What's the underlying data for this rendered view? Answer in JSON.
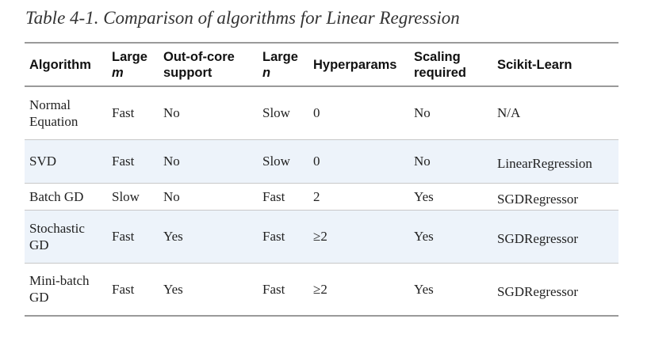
{
  "caption": "Table 4-1. Comparison of algorithms for Linear Regression",
  "headers": {
    "algorithm": "Algorithm",
    "large_m": {
      "line1": "Large",
      "line2": "m"
    },
    "out_of_core": {
      "line1": "Out-of-core",
      "line2": "support"
    },
    "large_n": {
      "line1": "Large",
      "line2": "n"
    },
    "hyperparams": "Hyperparams",
    "scaling": {
      "line1": "Scaling",
      "line2": "required"
    },
    "sklearn": "Scikit-Learn"
  },
  "rows": [
    {
      "algorithm": {
        "line1": "Normal",
        "line2": "Equation"
      },
      "large_m": "Fast",
      "out_of_core": "No",
      "large_n": "Slow",
      "hyperparams": "0",
      "scaling": "No",
      "sklearn": "N/A"
    },
    {
      "algorithm": {
        "line1": "SVD",
        "line2": ""
      },
      "large_m": "Fast",
      "out_of_core": "No",
      "large_n": "Slow",
      "hyperparams": "0",
      "scaling": "No",
      "sklearn": "LinearRegression"
    },
    {
      "algorithm": {
        "line1": "Batch GD",
        "line2": ""
      },
      "large_m": "Slow",
      "out_of_core": "No",
      "large_n": "Fast",
      "hyperparams": "2",
      "scaling": "Yes",
      "sklearn": "SGDRegressor"
    },
    {
      "algorithm": {
        "line1": "Stochastic",
        "line2": "GD"
      },
      "large_m": "Fast",
      "out_of_core": "Yes",
      "large_n": "Fast",
      "hyperparams": "≥2",
      "scaling": "Yes",
      "sklearn": "SGDRegressor"
    },
    {
      "algorithm": {
        "line1": "Mini-batch",
        "line2": "GD"
      },
      "large_m": "Fast",
      "out_of_core": "Yes",
      "large_n": "Fast",
      "hyperparams": "≥2",
      "scaling": "Yes",
      "sklearn": "SGDRegressor"
    }
  ],
  "colors": {
    "shaded_row": "#edf3fa",
    "rule": "#9a9a9a"
  }
}
